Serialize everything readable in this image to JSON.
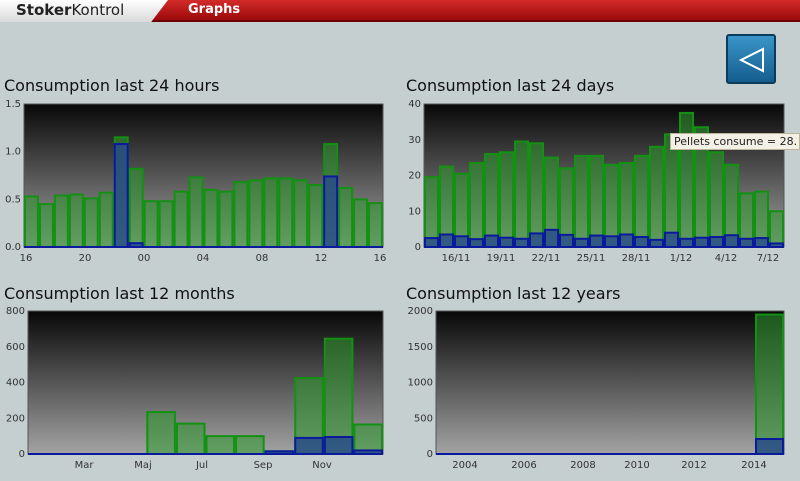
{
  "app": {
    "logo_strong": "Stoker",
    "logo_rest": "Kontrol",
    "tab": "Graphs"
  },
  "tooltip": "Pellets consume = 28.",
  "chart_data": [
    {
      "id": "c24h",
      "type": "bar",
      "title": "Consumption last 24 hours",
      "ylim": [
        0,
        1.5
      ],
      "yticks": [
        "0.0",
        "0.5",
        "1.0",
        "1.5"
      ],
      "xticks": [
        "16",
        "20",
        "00",
        "04",
        "08",
        "12",
        "16"
      ],
      "series": [
        {
          "values": [
            0.53,
            0.45,
            0.54,
            0.55,
            0.51,
            0.57,
            1.15,
            0.82,
            0.48,
            0.48,
            0.58,
            0.73,
            0.6,
            0.58,
            0.68,
            0.7,
            0.72,
            0.72,
            0.7,
            0.65,
            1.08,
            0.62,
            0.5,
            0.46
          ]
        },
        {
          "values": [
            0,
            0,
            0,
            0,
            0,
            0,
            1.08,
            0.04,
            0,
            0,
            0,
            0,
            0,
            0,
            0,
            0,
            0,
            0,
            0,
            0,
            0.74,
            0,
            0,
            0
          ]
        }
      ]
    },
    {
      "id": "c24d",
      "type": "bar",
      "title": "Consumption last 24 days",
      "ylim": [
        0,
        40
      ],
      "yticks": [
        "0",
        "10",
        "20",
        "30",
        "40"
      ],
      "xticks": [
        "16/11",
        "19/11",
        "22/11",
        "25/11",
        "28/11",
        "1/12",
        "4/12",
        "7/12"
      ],
      "series": [
        {
          "values": [
            19.5,
            22.5,
            20.5,
            23.5,
            26,
            26.5,
            29.5,
            29,
            25,
            22,
            25.5,
            25.5,
            23,
            23.5,
            25.5,
            28,
            31.5,
            37.5,
            33.5,
            26.5,
            23,
            15,
            15.5,
            10
          ]
        },
        {
          "values": [
            2.5,
            3.5,
            3,
            2.2,
            3.2,
            2.6,
            2.3,
            3.8,
            4.8,
            3.4,
            2.3,
            3.2,
            3,
            3.5,
            2.8,
            2,
            4,
            2.3,
            2.6,
            2.8,
            3.3,
            2.3,
            2.5,
            1
          ]
        }
      ]
    },
    {
      "id": "c12m",
      "type": "bar",
      "title": "Consumption last 12 months",
      "ylim": [
        0,
        800
      ],
      "yticks": [
        "0",
        "200",
        "400",
        "600",
        "800"
      ],
      "xticks": [
        "Mar",
        "Maj",
        "Jul",
        "Sep",
        "Nov"
      ],
      "series": [
        {
          "values": [
            0,
            0,
            0,
            0,
            235,
            170,
            100,
            100,
            15,
            425,
            645,
            165
          ]
        },
        {
          "values": [
            0,
            0,
            0,
            0,
            0,
            0,
            0,
            0,
            15,
            90,
            95,
            20
          ]
        }
      ]
    },
    {
      "id": "c12y",
      "type": "bar",
      "title": "Consumption last 12 years",
      "ylim": [
        0,
        2000
      ],
      "yticks": [
        "0",
        "500",
        "1000",
        "1500",
        "2000"
      ],
      "xticks": [
        "2004",
        "2006",
        "2008",
        "2010",
        "2012",
        "2014"
      ],
      "series": [
        {
          "values": [
            0,
            0,
            0,
            0,
            0,
            0,
            0,
            0,
            0,
            0,
            0,
            1950
          ]
        },
        {
          "values": [
            0,
            0,
            0,
            0,
            0,
            0,
            0,
            0,
            0,
            0,
            0,
            210
          ]
        }
      ]
    }
  ]
}
